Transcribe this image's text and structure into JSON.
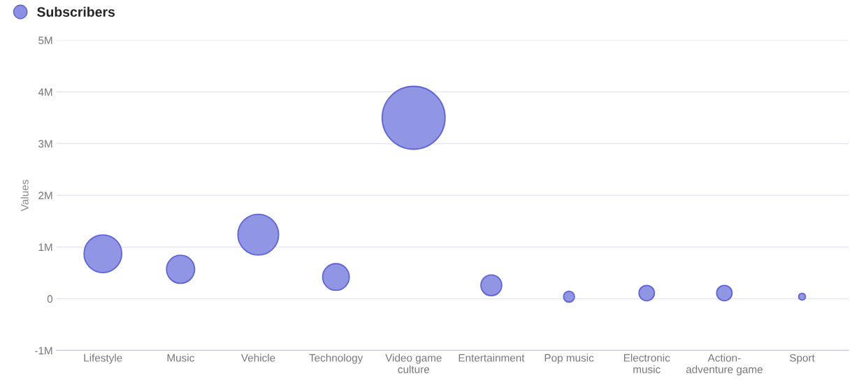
{
  "chart_data": {
    "type": "bubble",
    "ylabel": "Values",
    "categories": [
      "Lifestyle",
      "Music",
      "Vehicle",
      "Technology",
      "Video game\nculture",
      "Entertainment",
      "Pop music",
      "Electronic\nmusic",
      "Action-\nadventure game",
      "Sport"
    ],
    "series": [
      {
        "name": "Subscribers",
        "color": "#8b90e3",
        "values": [
          0.87,
          0.57,
          1.24,
          0.42,
          3.5,
          0.26,
          0.04,
          0.11,
          0.11,
          0.04
        ],
        "sizes": [
          0.36,
          0.2,
          0.42,
          0.18,
          1,
          0.11,
          0.03,
          0.06,
          0.06,
          0.012
        ]
      }
    ],
    "ylim": [
      -1,
      5
    ],
    "yticks": [
      {
        "value": -1,
        "label": "-1M"
      },
      {
        "value": 0,
        "label": "0"
      },
      {
        "value": 1,
        "label": "1M"
      },
      {
        "value": 2,
        "label": "2M"
      },
      {
        "value": 3,
        "label": "3M"
      },
      {
        "value": 4,
        "label": "4M"
      },
      {
        "value": 5,
        "label": "5M"
      }
    ],
    "grid": "y",
    "legend": "top left"
  }
}
